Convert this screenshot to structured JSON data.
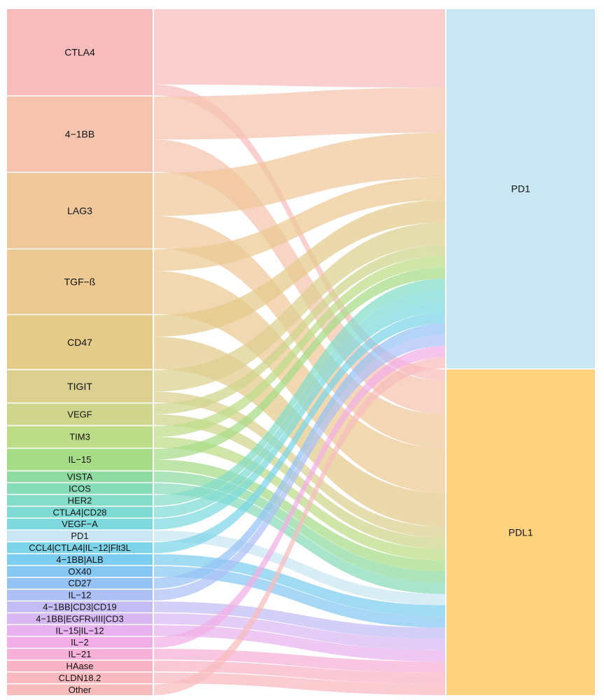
{
  "chart_data": {
    "type": "sankey",
    "title": "",
    "left_nodes": [
      {
        "label": "CTLA4",
        "value": 8,
        "color": "#f8bcbc"
      },
      {
        "label": "4−1BB",
        "value": 7,
        "color": "#f5c3ae"
      },
      {
        "label": "LAG3",
        "value": 7,
        "color": "#f0c79a"
      },
      {
        "label": "TGF−ß",
        "value": 6,
        "color": "#ecc992"
      },
      {
        "label": "CD47",
        "value": 5,
        "color": "#e4cb8a"
      },
      {
        "label": "TIGIT",
        "value": 3,
        "color": "#dcd090"
      },
      {
        "label": "VEGF",
        "value": 2,
        "color": "#cfd68c"
      },
      {
        "label": "TIM3",
        "value": 2,
        "color": "#bcdc87"
      },
      {
        "label": "IL−15",
        "value": 2,
        "color": "#a6dc86"
      },
      {
        "label": "VISTA",
        "value": 1,
        "color": "#8fdaa0"
      },
      {
        "label": "ICOS",
        "value": 1,
        "color": "#86dbb8"
      },
      {
        "label": "HER2",
        "value": 1,
        "color": "#83dcc8"
      },
      {
        "label": "CTLA4|CD28",
        "value": 1,
        "color": "#7edbd4"
      },
      {
        "label": "VEGF−A",
        "value": 1,
        "color": "#7dd9de"
      },
      {
        "label": "PD1",
        "value": 1,
        "color": "#c9e6f2"
      },
      {
        "label": "CCL4|CTLA4|IL−12|Flt3L",
        "value": 1,
        "color": "#7dd4e8"
      },
      {
        "label": "4−1BB|ALB",
        "value": 1,
        "color": "#7ccdef"
      },
      {
        "label": "OX40",
        "value": 1,
        "color": "#86c8f3"
      },
      {
        "label": "CD27",
        "value": 1,
        "color": "#95c2f5"
      },
      {
        "label": "IL−12",
        "value": 1,
        "color": "#adc0f6"
      },
      {
        "label": "4−1BB|CD3|CD19",
        "value": 1,
        "color": "#c4bcf5"
      },
      {
        "label": "4−1BB|EGFRvIII|CD3",
        "value": 1,
        "color": "#d8b8f3"
      },
      {
        "label": "IL−15|IL−12",
        "value": 1,
        "color": "#e8b2ef"
      },
      {
        "label": "IL−2",
        "value": 1,
        "color": "#f2aee6"
      },
      {
        "label": "IL−21",
        "value": 1,
        "color": "#f7b0d7"
      },
      {
        "label": "HAase",
        "value": 1,
        "color": "#f9b3c6"
      },
      {
        "label": "CLDN18.2",
        "value": 1,
        "color": "#f8b8c0"
      },
      {
        "label": "Other",
        "value": 1,
        "color": "#f6bcbc"
      }
    ],
    "right_nodes": [
      {
        "label": "PD1",
        "color": "#c8e7f3"
      },
      {
        "label": "PDL1",
        "color": "#ffd280"
      }
    ],
    "links": [
      {
        "source": "CTLA4",
        "target": "PD1",
        "value": 7
      },
      {
        "source": "CTLA4",
        "target": "PDL1",
        "value": 1
      },
      {
        "source": "4−1BB",
        "target": "PD1",
        "value": 4
      },
      {
        "source": "4−1BB",
        "target": "PDL1",
        "value": 3
      },
      {
        "source": "LAG3",
        "target": "PD1",
        "value": 4
      },
      {
        "source": "LAG3",
        "target": "PDL1",
        "value": 3
      },
      {
        "source": "TGF−ß",
        "target": "PD1",
        "value": 2
      },
      {
        "source": "TGF−ß",
        "target": "PDL1",
        "value": 4
      },
      {
        "source": "CD47",
        "target": "PD1",
        "value": 2
      },
      {
        "source": "CD47",
        "target": "PDL1",
        "value": 3
      },
      {
        "source": "TIGIT",
        "target": "PD1",
        "value": 2
      },
      {
        "source": "TIGIT",
        "target": "PDL1",
        "value": 1
      },
      {
        "source": "VEGF",
        "target": "PD1",
        "value": 1
      },
      {
        "source": "VEGF",
        "target": "PDL1",
        "value": 1
      },
      {
        "source": "TIM3",
        "target": "PD1",
        "value": 1
      },
      {
        "source": "TIM3",
        "target": "PDL1",
        "value": 1
      },
      {
        "source": "IL−15",
        "target": "PD1",
        "value": 1
      },
      {
        "source": "IL−15",
        "target": "PDL1",
        "value": 1
      },
      {
        "source": "VISTA",
        "target": "PDL1",
        "value": 1
      },
      {
        "source": "ICOS",
        "target": "PDL1",
        "value": 1
      },
      {
        "source": "HER2",
        "target": "PD1",
        "value": 1
      },
      {
        "source": "CTLA4|CD28",
        "target": "PD1",
        "value": 1
      },
      {
        "source": "VEGF−A",
        "target": "PD1",
        "value": 1
      },
      {
        "source": "PD1",
        "target": "PDL1",
        "value": 1
      },
      {
        "source": "CCL4|CTLA4|IL−12|Flt3L",
        "target": "PD1",
        "value": 1
      },
      {
        "source": "4−1BB|ALB",
        "target": "PDL1",
        "value": 1
      },
      {
        "source": "OX40",
        "target": "PDL1",
        "value": 1
      },
      {
        "source": "CD27",
        "target": "PD1",
        "value": 1
      },
      {
        "source": "IL−12",
        "target": "PD1",
        "value": 1
      },
      {
        "source": "4−1BB|CD3|CD19",
        "target": "PDL1",
        "value": 1
      },
      {
        "source": "4−1BB|EGFRvIII|CD3",
        "target": "PDL1",
        "value": 1
      },
      {
        "source": "IL−15|IL−12",
        "target": "PDL1",
        "value": 1
      },
      {
        "source": "IL−2",
        "target": "PD1",
        "value": 1
      },
      {
        "source": "IL−21",
        "target": "PDL1",
        "value": 1
      },
      {
        "source": "HAase",
        "target": "PDL1",
        "value": 1
      },
      {
        "source": "CLDN18.2",
        "target": "PDL1",
        "value": 1
      },
      {
        "source": "Other",
        "target": "PD1",
        "value": 1
      }
    ]
  }
}
